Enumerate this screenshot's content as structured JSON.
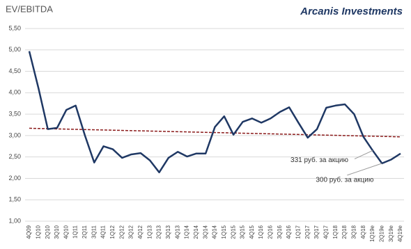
{
  "chart_data": {
    "type": "line",
    "title": "EV/EBITDA",
    "brand": "Arcanis Investments",
    "categories": [
      "4Q09",
      "1Q10",
      "2Q10",
      "3Q10",
      "4Q10",
      "1Q11",
      "2Q11",
      "3Q11",
      "4Q11",
      "1Q12",
      "2Q12",
      "3Q12",
      "4Q12",
      "1Q13",
      "2Q13",
      "3Q13",
      "4Q13",
      "1Q14",
      "2Q14",
      "3Q14",
      "4Q14",
      "1Q15",
      "2Q15",
      "3Q15",
      "4Q15",
      "1Q16",
      "2Q16",
      "3Q16",
      "4Q16",
      "1Q17",
      "2Q17",
      "3Q17",
      "4Q17",
      "1Q18",
      "2Q18",
      "3Q18",
      "4Q18",
      "1Q19e",
      "2Q19e",
      "3Q19e",
      "4Q19e"
    ],
    "series": [
      {
        "name": "EV/EBITDA",
        "color": "#1f3864",
        "values": [
          4.97,
          4.1,
          3.15,
          3.18,
          3.6,
          3.7,
          3.0,
          2.37,
          2.75,
          2.68,
          2.48,
          2.56,
          2.59,
          2.42,
          2.14,
          2.48,
          2.62,
          2.51,
          2.58,
          2.58,
          3.2,
          3.45,
          3.02,
          3.32,
          3.4,
          3.3,
          3.4,
          3.55,
          3.66,
          3.3,
          2.95,
          3.15,
          3.65,
          3.7,
          3.73,
          3.5,
          2.97,
          2.65,
          2.35,
          2.44,
          2.58
        ]
      }
    ],
    "trend": {
      "color": "#8b1a1a",
      "values": [
        3.17,
        2.97
      ]
    },
    "annotations": [
      {
        "text": "331 руб. за акцию",
        "category": "1Q19e"
      },
      {
        "text": "300 руб. за акцию",
        "category": "2Q19e"
      }
    ],
    "ylim": [
      1.0,
      5.5
    ],
    "yticks": [
      {
        "value": 1.0,
        "label": "1,00"
      },
      {
        "value": 1.5,
        "label": "1,50"
      },
      {
        "value": 2.0,
        "label": "2,00"
      },
      {
        "value": 2.5,
        "label": "2,50"
      },
      {
        "value": 3.0,
        "label": "3,00"
      },
      {
        "value": 3.5,
        "label": "3,50"
      },
      {
        "value": 4.0,
        "label": "4,00"
      },
      {
        "value": 4.5,
        "label": "4,50"
      },
      {
        "value": 5.0,
        "label": "5,00"
      },
      {
        "value": 5.5,
        "label": "5,50"
      }
    ],
    "grid": true
  }
}
